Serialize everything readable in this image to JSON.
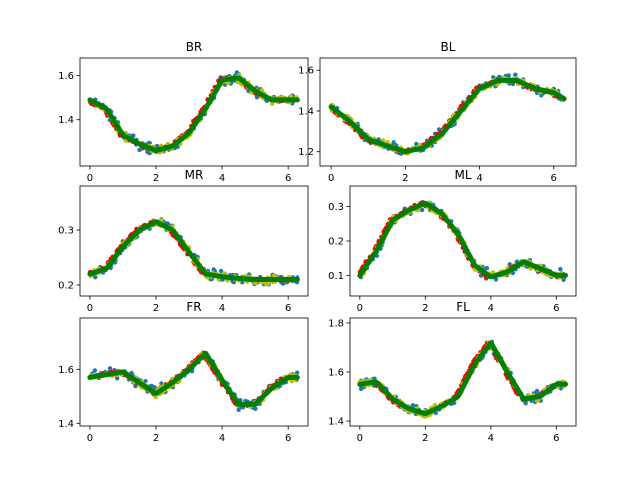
{
  "figure": {
    "background": "#ffffff"
  },
  "series_colors": {
    "dots_blue": "#1f77b4",
    "dots_red": "#ff0000",
    "dots_yellow": "#bfbf00",
    "fit_line": "#008000"
  },
  "chart_data": [
    {
      "type": "scatter",
      "title": "BR",
      "xlim": [
        -0.3,
        6.6
      ],
      "ylim": [
        1.19,
        1.68
      ],
      "xticks": [
        0,
        2,
        4,
        6
      ],
      "xtick_labels": [
        "0",
        "2",
        "4",
        "6"
      ],
      "yticks": [
        1.4,
        1.6
      ],
      "ytick_labels": [
        "1.4",
        "1.6"
      ],
      "fit": {
        "x": [
          0,
          0.5,
          1,
          1.5,
          2,
          2.5,
          3,
          3.5,
          4,
          4.5,
          5,
          5.5,
          6,
          6.28
        ],
        "y": [
          1.49,
          1.45,
          1.33,
          1.29,
          1.26,
          1.28,
          1.34,
          1.45,
          1.58,
          1.59,
          1.53,
          1.49,
          1.49,
          1.49
        ]
      }
    },
    {
      "type": "scatter",
      "title": "BL",
      "xlim": [
        -0.3,
        6.6
      ],
      "ylim": [
        1.13,
        1.66
      ],
      "xticks": [
        0,
        2,
        4,
        6
      ],
      "xtick_labels": [
        "0",
        "2",
        "4",
        "6"
      ],
      "yticks": [
        1.2,
        1.4,
        1.6
      ],
      "ytick_labels": [
        "1.2",
        "1.4",
        "1.6"
      ],
      "fit": {
        "x": [
          0,
          0.5,
          1,
          1.5,
          2,
          2.5,
          3,
          3.5,
          4,
          4.5,
          5,
          5.5,
          6,
          6.28
        ],
        "y": [
          1.42,
          1.35,
          1.26,
          1.23,
          1.2,
          1.22,
          1.29,
          1.4,
          1.51,
          1.55,
          1.55,
          1.51,
          1.49,
          1.46
        ]
      }
    },
    {
      "type": "scatter",
      "title": "MR",
      "xlim": [
        -0.3,
        6.6
      ],
      "ylim": [
        0.18,
        0.38
      ],
      "xticks": [
        0,
        2,
        4,
        6
      ],
      "xtick_labels": [
        "0",
        "2",
        "4",
        "6"
      ],
      "yticks": [
        0.2,
        0.3
      ],
      "ytick_labels": [
        "0.2",
        "0.3"
      ],
      "fit": {
        "x": [
          0,
          0.5,
          1,
          1.5,
          2,
          2.5,
          3,
          3.5,
          4,
          4.5,
          5,
          5.5,
          6,
          6.28
        ],
        "y": [
          0.22,
          0.23,
          0.27,
          0.3,
          0.315,
          0.3,
          0.26,
          0.22,
          0.215,
          0.212,
          0.21,
          0.21,
          0.21,
          0.21
        ]
      }
    },
    {
      "type": "scatter",
      "title": "ML",
      "xlim": [
        -0.3,
        6.6
      ],
      "ylim": [
        0.04,
        0.36
      ],
      "xticks": [
        0,
        2,
        4,
        6
      ],
      "xtick_labels": [
        "0",
        "2",
        "4",
        "6"
      ],
      "yticks": [
        0.1,
        0.2,
        0.3
      ],
      "ytick_labels": [
        "0.1",
        "0.2",
        "0.3"
      ],
      "fit": {
        "x": [
          0,
          0.5,
          1,
          1.5,
          2,
          2.5,
          3,
          3.5,
          4,
          4.5,
          5,
          5.5,
          6,
          6.28
        ],
        "y": [
          0.1,
          0.17,
          0.26,
          0.29,
          0.31,
          0.28,
          0.22,
          0.13,
          0.095,
          0.11,
          0.14,
          0.12,
          0.1,
          0.1
        ]
      }
    },
    {
      "type": "scatter",
      "title": "FR",
      "xlim": [
        -0.3,
        6.6
      ],
      "ylim": [
        1.39,
        1.79
      ],
      "xticks": [
        0,
        2,
        4,
        6
      ],
      "xtick_labels": [
        "0",
        "2",
        "4",
        "6"
      ],
      "yticks": [
        1.4,
        1.6
      ],
      "ytick_labels": [
        "1.4",
        "1.6"
      ],
      "fit": {
        "x": [
          0,
          0.5,
          1,
          1.5,
          2,
          2.5,
          3,
          3.5,
          4,
          4.5,
          5,
          5.5,
          6,
          6.28
        ],
        "y": [
          1.57,
          1.58,
          1.59,
          1.55,
          1.51,
          1.55,
          1.6,
          1.66,
          1.56,
          1.47,
          1.47,
          1.53,
          1.57,
          1.57
        ]
      }
    },
    {
      "type": "scatter",
      "title": "FL",
      "xlim": [
        -0.3,
        6.6
      ],
      "ylim": [
        1.38,
        1.82
      ],
      "xticks": [
        0,
        2,
        4,
        6
      ],
      "xtick_labels": [
        "0",
        "2",
        "4",
        "6"
      ],
      "yticks": [
        1.4,
        1.6,
        1.8
      ],
      "ytick_labels": [
        "1.4",
        "1.6",
        "1.8"
      ],
      "fit": {
        "x": [
          0,
          0.5,
          1,
          1.5,
          2,
          2.5,
          3,
          3.5,
          4,
          4.5,
          5,
          5.5,
          6,
          6.28
        ],
        "y": [
          1.55,
          1.56,
          1.49,
          1.45,
          1.43,
          1.46,
          1.5,
          1.63,
          1.72,
          1.6,
          1.49,
          1.5,
          1.55,
          1.55
        ]
      }
    }
  ]
}
